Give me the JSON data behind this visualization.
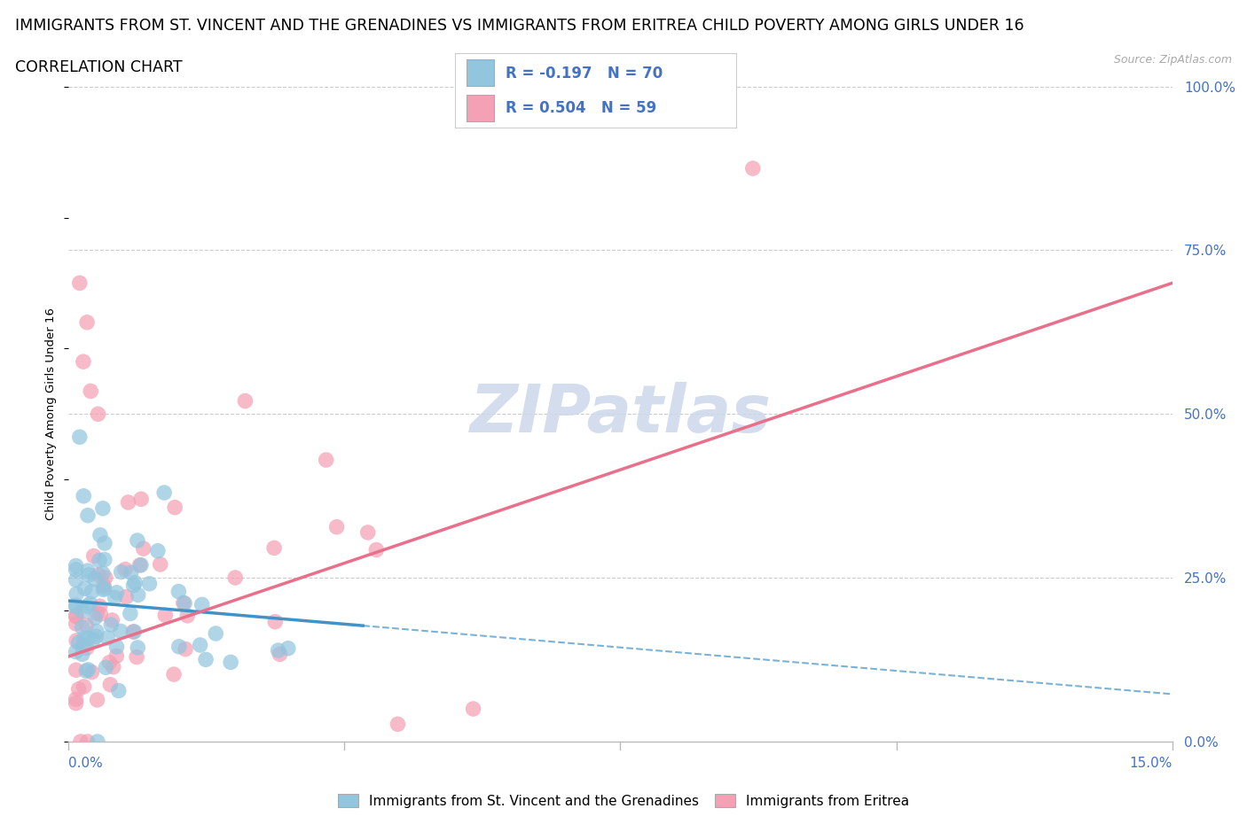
{
  "title_line1": "IMMIGRANTS FROM ST. VINCENT AND THE GRENADINES VS IMMIGRANTS FROM ERITREA CHILD POVERTY AMONG GIRLS UNDER 16",
  "title_line2": "CORRELATION CHART",
  "source": "Source: ZipAtlas.com",
  "ylabel_label": "Child Poverty Among Girls Under 16",
  "legend1_label": "Immigrants from St. Vincent and the Grenadines",
  "legend2_label": "Immigrants from Eritrea",
  "R1": -0.197,
  "N1": 70,
  "R2": 0.504,
  "N2": 59,
  "color1": "#92c5de",
  "color2": "#f4a0b5",
  "color_text_blue": "#4472c4",
  "color_text_black": "#333333",
  "watermark": "ZIPatlas",
  "xmin": 0.0,
  "xmax": 0.15,
  "ymin": 0.0,
  "ymax": 1.0,
  "yticks": [
    0.0,
    0.25,
    0.5,
    0.75,
    1.0
  ],
  "ytick_labels": [
    "0.0%",
    "25.0%",
    "50.0%",
    "75.0%",
    "100.0%"
  ],
  "xtick_label_left": "0.0%",
  "xtick_label_right": "15.0%",
  "gridline_color": "#cccccc",
  "axis_color": "#bbbbbb",
  "watermark_color": "#cdd8ea",
  "trend1_color": "#4292c6",
  "trend2_color": "#e8708a",
  "title_fontsize": 12.5,
  "tick_fontsize": 11,
  "legend_fontsize": 11,
  "trend1_m": -0.95,
  "trend1_b": 0.215,
  "trend2_m": 3.8,
  "trend2_b": 0.13,
  "trend1_solid_end": 0.04
}
